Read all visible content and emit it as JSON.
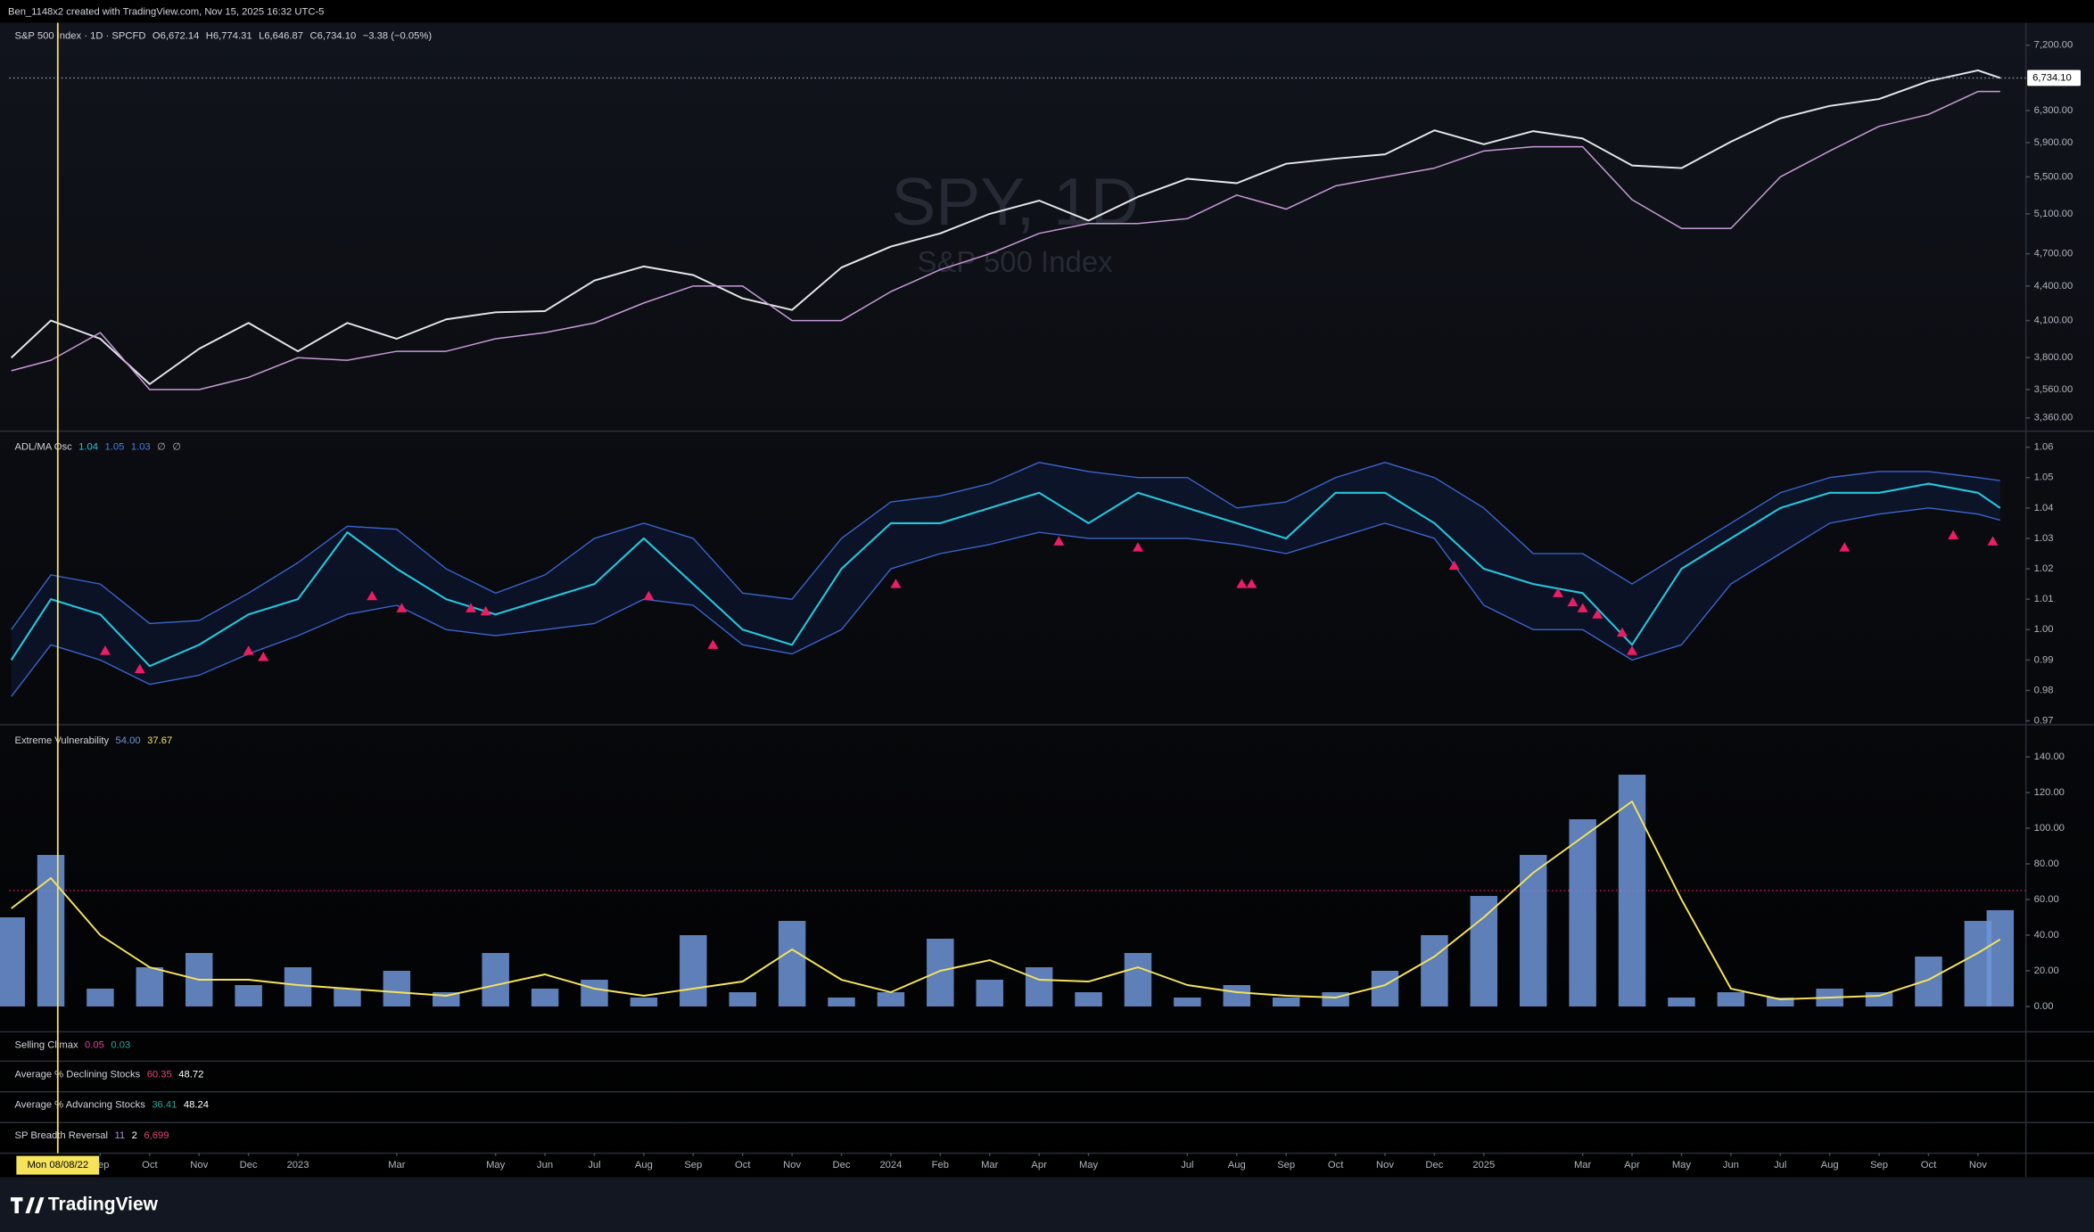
{
  "header": {
    "caption": "Ben_1148x2 created with TradingView.com, Nov 15, 2025 16:32 UTC-5"
  },
  "footer": {
    "brand": "TradingView"
  },
  "time_axis": {
    "xlim": [
      0.16,
      40.97
    ],
    "xticks": [
      {
        "value": 2,
        "label": "Sep"
      },
      {
        "value": 3,
        "label": "Oct"
      },
      {
        "value": 4,
        "label": "Nov"
      },
      {
        "value": 5,
        "label": "Dec"
      },
      {
        "value": 6,
        "label": "2023"
      },
      {
        "value": 8,
        "label": "Mar"
      },
      {
        "value": 10,
        "label": "May"
      },
      {
        "value": 11,
        "label": "Jun"
      },
      {
        "value": 12,
        "label": "Jul"
      },
      {
        "value": 13,
        "label": "Aug"
      },
      {
        "value": 14,
        "label": "Sep"
      },
      {
        "value": 15,
        "label": "Oct"
      },
      {
        "value": 16,
        "label": "Nov"
      },
      {
        "value": 17,
        "label": "Dec"
      },
      {
        "value": 18,
        "label": "2024"
      },
      {
        "value": 19,
        "label": "Feb"
      },
      {
        "value": 20,
        "label": "Mar"
      },
      {
        "value": 21,
        "label": "Apr"
      },
      {
        "value": 22,
        "label": "May"
      },
      {
        "value": 24,
        "label": "Jul"
      },
      {
        "value": 25,
        "label": "Aug"
      },
      {
        "value": 26,
        "label": "Sep"
      },
      {
        "value": 27,
        "label": "Oct"
      },
      {
        "value": 28,
        "label": "Nov"
      },
      {
        "value": 29,
        "label": "Dec"
      },
      {
        "value": 30,
        "label": "2025"
      },
      {
        "value": 32,
        "label": "Mar"
      },
      {
        "value": 33,
        "label": "Apr"
      },
      {
        "value": 34,
        "label": "May"
      },
      {
        "value": 35,
        "label": "Jun"
      },
      {
        "value": 36,
        "label": "Jul"
      },
      {
        "value": 37,
        "label": "Aug"
      },
      {
        "value": 38,
        "label": "Sep"
      },
      {
        "value": 39,
        "label": "Oct"
      },
      {
        "value": 40,
        "label": "Nov"
      }
    ],
    "crosshair": {
      "x": 1.14,
      "label": "Mon 08/08/22",
      "color": "#f5e35b"
    }
  },
  "chart_data": [
    {
      "type": "line",
      "title": "S&P 500 Index · 1D · SPCFD",
      "status": [
        "O6,672.14",
        "H6,774.31",
        "L6,646.87",
        "C6,734.10",
        "−3.38 (−0.05%)"
      ],
      "watermark": [
        "SPY, 1D",
        "S&P 500 Index"
      ],
      "log_scale": true,
      "ylim": [
        3270,
        7540
      ],
      "yticks": [
        {
          "value": 7200,
          "label": "7,200.00"
        },
        {
          "value": 6300,
          "label": "6,300.00"
        },
        {
          "value": 5900,
          "label": "5,900.00"
        },
        {
          "value": 5500,
          "label": "5,500.00"
        },
        {
          "value": 5100,
          "label": "5,100.00"
        },
        {
          "value": 4700,
          "label": "4,700.00"
        },
        {
          "value": 4400,
          "label": "4,400.00"
        },
        {
          "value": 4100,
          "label": "4,100.00"
        },
        {
          "value": 3800,
          "label": "3,800.00"
        },
        {
          "value": 3560,
          "label": "3,560.00"
        },
        {
          "value": 3360,
          "label": "3,360.00"
        }
      ],
      "x": [
        0.2,
        1,
        2,
        3,
        4,
        5,
        6,
        7,
        8,
        9,
        10,
        11,
        12,
        13,
        14,
        15,
        16,
        17,
        18,
        19,
        20,
        21,
        22,
        23,
        24,
        25,
        26,
        27,
        28,
        29,
        30,
        31,
        32,
        33,
        34,
        35,
        36,
        37,
        38,
        39,
        40,
        40.45
      ],
      "series": [
        {
          "color": "#e6e8ee",
          "values": [
            3800,
            4100,
            3950,
            3600,
            3870,
            4080,
            3850,
            4080,
            3950,
            4110,
            4170,
            4180,
            4450,
            4580,
            4500,
            4290,
            4190,
            4570,
            4770,
            4900,
            5100,
            5240,
            5030,
            5280,
            5480,
            5430,
            5650,
            5710,
            5760,
            6050,
            5880,
            6040,
            5950,
            5630,
            5600,
            5910,
            6200,
            6360,
            6450,
            6690,
            6840,
            6734.1
          ]
        },
        {
          "color": "#c79bd6",
          "values": [
            3700,
            3780,
            4000,
            3560,
            3560,
            3650,
            3800,
            3780,
            3850,
            3850,
            3950,
            4000,
            4080,
            4250,
            4400,
            4400,
            4100,
            4100,
            4350,
            4550,
            4700,
            4900,
            5000,
            5000,
            5050,
            5300,
            5150,
            5400,
            5500,
            5600,
            5800,
            5850,
            5850,
            5250,
            4950,
            4950,
            5500,
            5800,
            6100,
            6250,
            6550,
            6550
          ]
        }
      ],
      "last_price": {
        "value": 6734.1,
        "label": "6,734.10"
      }
    },
    {
      "type": "band",
      "title": "ADL/MA Osc",
      "legend_values": [
        1.04,
        1.05,
        1.03
      ],
      "legend_colors": [
        "#26c6da",
        "#4a7fe0",
        "#4a7fe0"
      ],
      "legend_na": [
        "∅",
        "∅"
      ],
      "ylim": [
        0.9687,
        1.0644
      ],
      "yticks": [
        1.06,
        1.05,
        1.04,
        1.03,
        1.02,
        1.01,
        {
          "value": 1.0,
          "label": "1.00"
        },
        0.99,
        0.98,
        0.97
      ],
      "x": [
        0.2,
        1,
        2,
        3,
        4,
        5,
        6,
        7,
        8,
        9,
        10,
        11,
        12,
        13,
        14,
        15,
        16,
        17,
        18,
        19,
        20,
        21,
        22,
        23,
        24,
        25,
        26,
        27,
        28,
        29,
        30,
        31,
        32,
        33,
        34,
        35,
        36,
        37,
        38,
        39,
        40,
        40.45
      ],
      "series": [
        {
          "color": "#26c6da",
          "values": [
            0.99,
            1.01,
            1.005,
            0.988,
            0.995,
            1.005,
            1.01,
            1.032,
            1.02,
            1.01,
            1.005,
            1.01,
            1.015,
            1.03,
            1.015,
            1.0,
            0.995,
            1.02,
            1.035,
            1.035,
            1.04,
            1.045,
            1.035,
            1.045,
            1.04,
            1.035,
            1.03,
            1.045,
            1.045,
            1.035,
            1.02,
            1.015,
            1.012,
            0.995,
            1.02,
            1.03,
            1.04,
            1.045,
            1.045,
            1.048,
            1.045,
            1.04
          ]
        },
        {
          "color": "#3b66d0",
          "values": [
            1.0,
            1.018,
            1.015,
            1.002,
            1.003,
            1.012,
            1.022,
            1.034,
            1.033,
            1.02,
            1.012,
            1.018,
            1.03,
            1.035,
            1.03,
            1.012,
            1.01,
            1.03,
            1.042,
            1.044,
            1.048,
            1.055,
            1.052,
            1.05,
            1.05,
            1.04,
            1.042,
            1.05,
            1.055,
            1.05,
            1.04,
            1.025,
            1.025,
            1.015,
            1.025,
            1.035,
            1.045,
            1.05,
            1.052,
            1.052,
            1.05,
            1.049
          ]
        },
        {
          "color": "#3b66d0",
          "values": [
            0.978,
            0.995,
            0.99,
            0.982,
            0.985,
            0.992,
            0.998,
            1.005,
            1.008,
            1.0,
            0.998,
            1.0,
            1.002,
            1.01,
            1.008,
            0.995,
            0.992,
            1.0,
            1.02,
            1.025,
            1.028,
            1.032,
            1.03,
            1.03,
            1.03,
            1.028,
            1.025,
            1.03,
            1.035,
            1.03,
            1.008,
            1.0,
            1.0,
            0.99,
            0.995,
            1.015,
            1.025,
            1.035,
            1.038,
            1.04,
            1.038,
            1.036
          ]
        }
      ],
      "band_fill": "rgba(41,98,255,0.10)",
      "markers": {
        "color": "#e91e63",
        "x": [
          2.1,
          2.8,
          5.0,
          5.3,
          7.5,
          8.1,
          9.5,
          9.8,
          13.1,
          14.4,
          18.1,
          21.4,
          23,
          25.1,
          25.3,
          29.4,
          31.5,
          31.8,
          32.0,
          32.3,
          32.8,
          33.0,
          37.3,
          39.5,
          40.3
        ],
        "values": [
          0.993,
          0.987,
          0.993,
          0.991,
          1.011,
          1.007,
          1.007,
          1.006,
          1.011,
          0.995,
          1.015,
          1.029,
          1.027,
          1.015,
          1.015,
          1.021,
          1.012,
          1.009,
          1.007,
          1.005,
          0.999,
          0.993,
          1.027,
          1.031,
          1.029
        ]
      }
    },
    {
      "type": "combo",
      "title": "Extreme Vulnerability",
      "legend_values": [
        54.0,
        37.67
      ],
      "legend_labels": [
        "54.00",
        "37.67"
      ],
      "legend_colors": [
        "#6f95d8",
        "#f5e35b"
      ],
      "ylim": [
        -14.2,
        156.5
      ],
      "yticks": [
        {
          "value": 140,
          "label": "140.00"
        },
        {
          "value": 120,
          "label": "120.00"
        },
        {
          "value": 100,
          "label": "100.00"
        },
        {
          "value": 80,
          "label": "80.00"
        },
        {
          "value": 60,
          "label": "60.00"
        },
        {
          "value": 40,
          "label": "40.00"
        },
        {
          "value": 20,
          "label": "20.00"
        },
        {
          "value": 0,
          "label": "0.00"
        }
      ],
      "threshold": 65,
      "threshold_color": "#c2185b",
      "x": [
        0.2,
        1,
        2,
        3,
        4,
        5,
        6,
        7,
        8,
        9,
        10,
        11,
        12,
        13,
        14,
        15,
        16,
        17,
        18,
        19,
        20,
        21,
        22,
        23,
        24,
        25,
        26,
        27,
        28,
        29,
        30,
        31,
        32,
        33,
        34,
        35,
        36,
        37,
        38,
        39,
        40,
        40.45
      ],
      "series": [
        {
          "color": "#6f95d8",
          "values": [
            50,
            85,
            10,
            22,
            30,
            12,
            22,
            10,
            20,
            8,
            30,
            10,
            15,
            5,
            40,
            8,
            48,
            5,
            8,
            38,
            15,
            22,
            8,
            30,
            5,
            12,
            5,
            8,
            20,
            40,
            62,
            85,
            105,
            130,
            5,
            8,
            5,
            10,
            8,
            28,
            48,
            54
          ]
        },
        {
          "color": "#f5e35b",
          "values": [
            55,
            72,
            40,
            22,
            15,
            15,
            12,
            10,
            8,
            6,
            12,
            18,
            10,
            6,
            10,
            14,
            32,
            15,
            8,
            20,
            26,
            15,
            14,
            22,
            12,
            8,
            6,
            5,
            12,
            28,
            50,
            75,
            95,
            115,
            60,
            10,
            4,
            5,
            6,
            15,
            30,
            37.67
          ]
        }
      ]
    },
    {
      "type": "legend",
      "title": "Selling Climax",
      "legend_values": [
        0.05,
        0.03
      ],
      "legend_colors": [
        "#e040a0",
        "#26a69a"
      ]
    },
    {
      "type": "legend",
      "title": "Average % Declining Stocks",
      "legend_values": [
        60.35,
        48.72
      ],
      "legend_colors": [
        "#e0457b",
        "#ffffff"
      ]
    },
    {
      "type": "legend",
      "title": "Average % Advancing Stocks",
      "legend_values": [
        36.41,
        48.24
      ],
      "legend_colors": [
        "#26a69a",
        "#ffffff"
      ]
    },
    {
      "type": "legend",
      "title": "SP Breadth Reversal",
      "legend_values": [
        11,
        2,
        6699
      ],
      "legend_labels": [
        "11",
        "2",
        "6,699"
      ],
      "legend_colors": [
        "#a88ee0",
        "#ffffff",
        "#e0457b"
      ]
    }
  ]
}
